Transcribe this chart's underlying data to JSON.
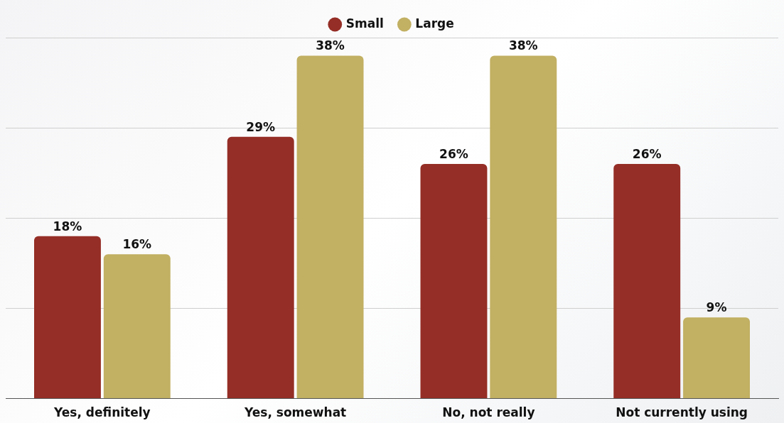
{
  "chart_data": {
    "type": "bar",
    "categories": [
      "Yes, definitely",
      "Yes, somewhat",
      "No, not really",
      "Not currently using"
    ],
    "series": [
      {
        "name": "Small",
        "color": "#952e26",
        "values": [
          18,
          29,
          26,
          26
        ],
        "value_labels": [
          "18%",
          "29%",
          "26%",
          "26%"
        ]
      },
      {
        "name": "Large",
        "color": "#c2b063",
        "values": [
          16,
          38,
          38,
          9
        ],
        "value_labels": [
          "16%",
          "38%",
          "38%",
          "9%"
        ]
      }
    ],
    "ylim": [
      0,
      40
    ],
    "yticks": [
      0,
      10,
      20,
      30,
      40
    ],
    "grid": "y",
    "legend": "top",
    "tick_labels": "x"
  }
}
